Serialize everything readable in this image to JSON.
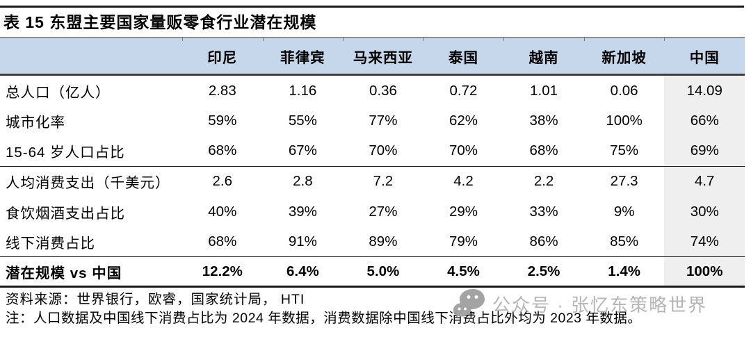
{
  "title": "表 15  东盟主要国家量贩零食行业潜在规模",
  "table": {
    "corner_label": "",
    "columns": [
      "印尼",
      "菲律宾",
      "马来西亚",
      "泰国",
      "越南",
      "新加坡",
      "中国"
    ],
    "rows": [
      {
        "label": "总人口（亿人）",
        "values": [
          "2.83",
          "1.16",
          "0.36",
          "0.72",
          "1.01",
          "0.06",
          "14.09"
        ],
        "bold": false,
        "group_end": false
      },
      {
        "label": "城市化率",
        "values": [
          "59%",
          "55%",
          "77%",
          "62%",
          "38%",
          "100%",
          "66%"
        ],
        "bold": false,
        "group_end": false
      },
      {
        "label": "15-64 岁人口占比",
        "values": [
          "68%",
          "67%",
          "70%",
          "70%",
          "68%",
          "75%",
          "69%"
        ],
        "bold": false,
        "group_end": true
      },
      {
        "label": "人均消费支出（千美元）",
        "values": [
          "2.6",
          "2.8",
          "7.2",
          "4.2",
          "2.2",
          "27.3",
          "4.7"
        ],
        "bold": false,
        "group_end": false
      },
      {
        "label": "食饮烟酒支出占比",
        "values": [
          "40%",
          "39%",
          "27%",
          "29%",
          "33%",
          "9%",
          "30%"
        ],
        "bold": false,
        "group_end": false
      },
      {
        "label": "线下消费占比",
        "values": [
          "68%",
          "91%",
          "89%",
          "79%",
          "86%",
          "85%",
          "74%"
        ],
        "bold": false,
        "group_end": true
      },
      {
        "label": "潜在规模 vs 中国",
        "values": [
          "12.2%",
          "6.4%",
          "5.0%",
          "4.5%",
          "2.5%",
          "1.4%",
          "100%"
        ],
        "bold": true,
        "group_end": false
      }
    ]
  },
  "source": "资料来源：世界银行，欧睿，国家统计局， HTI",
  "note": "注：人口数据及中国线下消费占比为 2024 年数据，消费数据除中国线下消费占比外均为 2023 年数据。",
  "watermark": {
    "icon": "wechat-icon",
    "text": "公众号 · 张忆东策略世界"
  },
  "colors": {
    "header_bg": "#c6d7eb",
    "china_column_bg": "#efefef",
    "watermark": "#b5b5b5",
    "rule": "#1a1a1a"
  }
}
